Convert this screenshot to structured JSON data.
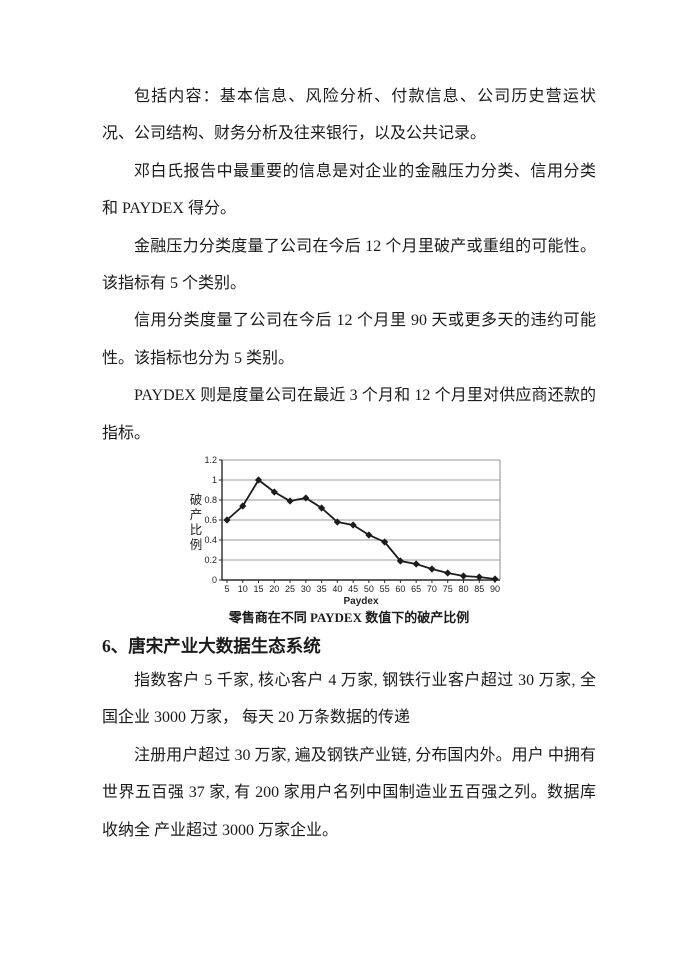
{
  "page": {
    "paragraphs_top": [
      "包括内容：基本信息、风险分析、付款信息、公司历史营运状况、公司结构、财务分析及往来银行，以及公共记录。",
      "邓白氏报告中最重要的信息是对企业的金融压力分类、信用分类和 PAYDEX 得分。",
      "金融压力分类度量了公司在今后 12 个月里破产或重组的可能性。该指标有 5 个类别。",
      "信用分类度量了公司在今后 12 个月里 90 天或更多天的违约可能性。该指标也分为 5 类别。",
      "PAYDEX 则是度量公司在最近 3 个月和 12 个月里对供应商还款的指标。"
    ],
    "chart_caption": "零售商在不同 PAYDEX 数值下的破产比例",
    "section_heading": "6、唐宋产业大数据生态系统",
    "paragraphs_bottom": [
      "指数客户 5 千家, 核心客户 4 万家, 钢铁行业客户超过 30 万家, 全国企业 3000 万家， 每天 20 万条数据的传递",
      "注册用户超过 30 万家, 遍及钢铁产业链, 分布国内外。用户 中拥有世界五百强 37 家, 有 200 家用户名列中国制造业五百强之列。数据库收纳全 产业超过 3000 万家企业。"
    ]
  },
  "chart_data": {
    "type": "line",
    "title": "零售商在不同 PAYDEX 数值下的破产比例",
    "xlabel": "Paydex",
    "ylabel": "破产比例",
    "x": [
      5,
      10,
      15,
      20,
      25,
      30,
      35,
      40,
      45,
      50,
      55,
      60,
      65,
      70,
      75,
      80,
      85,
      90
    ],
    "values": [
      0.6,
      0.74,
      1.0,
      0.88,
      0.79,
      0.82,
      0.72,
      0.58,
      0.55,
      0.45,
      0.38,
      0.19,
      0.16,
      0.11,
      0.07,
      0.04,
      0.03,
      0.01
    ],
    "ylim": [
      0,
      1.2
    ],
    "yticks": [
      0,
      0.2,
      0.4,
      0.6,
      0.8,
      1,
      1.2
    ],
    "ytick_labels": [
      "0",
      "0.2",
      "0.4",
      "0.6",
      "0.8",
      "1",
      "1.2"
    ],
    "grid": "horizontal",
    "legend": "none",
    "marker": "diamond",
    "colors": {
      "line": "#1c1c1c",
      "marker": "#1c1c1c",
      "grid": "#9a9a9a",
      "frame": "#8c8c8c",
      "axis": "#2a2a2a",
      "text": "#222222"
    }
  }
}
